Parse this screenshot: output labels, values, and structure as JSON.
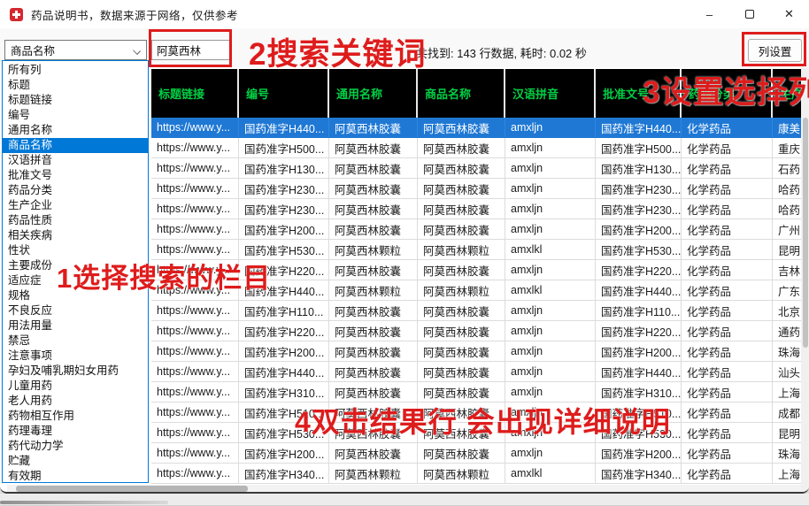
{
  "window": {
    "title": "药品说明书，数据来源于网络，仅供参考",
    "icons": {
      "minimize": "–",
      "close": "✕"
    }
  },
  "toolbar": {
    "column_select_value": "商品名称",
    "search_value": "阿莫西林",
    "status": "共找到: 143 行数据, 耗时: 0.02 秒",
    "column_settings_label": "列设置"
  },
  "dropdown": {
    "selected": "商品名称",
    "items": [
      "所有列",
      "标题",
      "标题链接",
      "编号",
      "通用名称",
      "商品名称",
      "汉语拼音",
      "批准文号",
      "药品分类",
      "生产企业",
      "药品性质",
      "相关疾病",
      "性状",
      "主要成份",
      "适应症",
      "规格",
      "不良反应",
      "用法用量",
      "禁忌",
      "注意事项",
      "孕妇及哺乳期妇女用药",
      "儿童用药",
      "老人用药",
      "药物相互作用",
      "药理毒理",
      "药代动力学",
      "贮藏",
      "有效期"
    ]
  },
  "table": {
    "headers": [
      "标题链接",
      "编号",
      "通用名称",
      "商品名称",
      "汉语拼音",
      "批准文号",
      "药品分类",
      "生产企业"
    ],
    "selected_row_index": 0,
    "rows": [
      [
        "https://www.y...",
        "国药准字H440...",
        "阿莫西林胶囊",
        "阿莫西林胶囊",
        "amxljn",
        "国药准字H440...",
        "化学药品",
        "康美"
      ],
      [
        "https://www.y...",
        "国药准字H500...",
        "阿莫西林胶囊",
        "阿莫西林胶囊",
        "amxljn",
        "国药准字H500...",
        "化学药品",
        "重庆"
      ],
      [
        "https://www.y...",
        "国药准字H130...",
        "阿莫西林胶囊",
        "阿莫西林胶囊",
        "amxljn",
        "国药准字H130...",
        "化学药品",
        "石药"
      ],
      [
        "https://www.y...",
        "国药准字H230...",
        "阿莫西林胶囊",
        "阿莫西林胶囊",
        "amxljn",
        "国药准字H230...",
        "化学药品",
        "哈药"
      ],
      [
        "https://www.y...",
        "国药准字H230...",
        "阿莫西林胶囊",
        "阿莫西林胶囊",
        "amxljn",
        "国药准字H230...",
        "化学药品",
        "哈药"
      ],
      [
        "https://www.y...",
        "国药准字H200...",
        "阿莫西林胶囊",
        "阿莫西林胶囊",
        "amxljn",
        "国药准字H200...",
        "化学药品",
        "广州"
      ],
      [
        "https://www.y...",
        "国药准字H530...",
        "阿莫西林颗粒",
        "阿莫西林颗粒",
        "amxlkl",
        "国药准字H530...",
        "化学药品",
        "昆明"
      ],
      [
        "https://www.y...",
        "国药准字H220...",
        "阿莫西林胶囊",
        "阿莫西林胶囊",
        "amxljn",
        "国药准字H220...",
        "化学药品",
        "吉林"
      ],
      [
        "https://www.y...",
        "国药准字H440...",
        "阿莫西林颗粒",
        "阿莫西林颗粒",
        "amxlkl",
        "国药准字H440...",
        "化学药品",
        "广东"
      ],
      [
        "https://www.y...",
        "国药准字H110...",
        "阿莫西林胶囊",
        "阿莫西林胶囊",
        "amxljn",
        "国药准字H110...",
        "化学药品",
        "北京"
      ],
      [
        "https://www.y...",
        "国药准字H220...",
        "阿莫西林胶囊",
        "阿莫西林胶囊",
        "amxljn",
        "国药准字H220...",
        "化学药品",
        "通药"
      ],
      [
        "https://www.y...",
        "国药准字H200...",
        "阿莫西林胶囊",
        "阿莫西林胶囊",
        "amxljn",
        "国药准字H200...",
        "化学药品",
        "珠海"
      ],
      [
        "https://www.y...",
        "国药准字H440...",
        "阿莫西林胶囊",
        "阿莫西林胶囊",
        "amxljn",
        "国药准字H440...",
        "化学药品",
        "汕头"
      ],
      [
        "https://www.y...",
        "国药准字H310...",
        "阿莫西林胶囊",
        "阿莫西林胶囊",
        "amxljn",
        "国药准字H310...",
        "化学药品",
        "上海"
      ],
      [
        "https://www.y...",
        "国药准字H510...",
        "阿莫西林胶囊",
        "阿莫西林胶囊",
        "amxljn",
        "国药准字H510...",
        "化学药品",
        "成都"
      ],
      [
        "https://www.y...",
        "国药准字H530...",
        "阿莫西林胶囊",
        "阿莫西林胶囊",
        "amxljn",
        "国药准字H530...",
        "化学药品",
        "昆明"
      ],
      [
        "https://www.y...",
        "国药准字H200...",
        "阿莫西林胶囊",
        "阿莫西林胶囊",
        "amxljn",
        "国药准字H200...",
        "化学药品",
        "珠海"
      ],
      [
        "https://www.y...",
        "国药准字H340...",
        "阿莫西林颗粒",
        "阿莫西林颗粒",
        "amxlkl",
        "国药准字H340...",
        "化学药品",
        "上海"
      ]
    ]
  },
  "annotations": {
    "step1": "1选择搜索的栏目",
    "step2": "2搜索关键词",
    "step3": "3设置选择列",
    "step4": "4双击结果行 会出现详细说明"
  },
  "colors": {
    "annotation_red": "#de1c1c",
    "header_bg": "#000000",
    "header_text_green": "#00d045",
    "row_selection_blue": "#1f78d4",
    "list_selection_blue": "#0078d7"
  }
}
